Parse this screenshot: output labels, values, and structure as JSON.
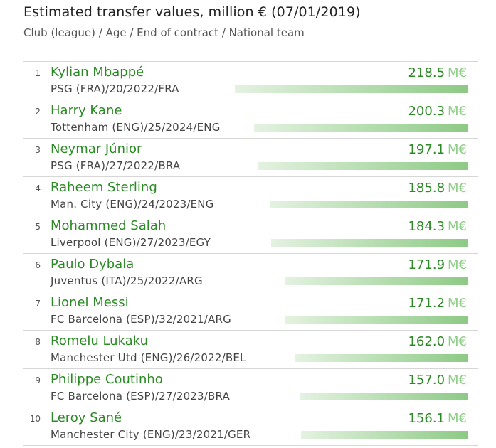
{
  "title": "Estimated transfer values, million € (07/01/2019)",
  "subtitle": "Club (league) / Age / End of contract / National team",
  "unit": "M€",
  "colors": {
    "accent": "#2a8a23",
    "unit": "#8fcf88",
    "bar_start": "#e4f2e1",
    "bar_end": "#8dca85"
  },
  "chart_data": {
    "type": "bar",
    "orientation": "horizontal",
    "title": "Estimated transfer values, million € (07/01/2019)",
    "categories": [
      "Kylian Mbappé",
      "Harry Kane",
      "Neymar Júnior",
      "Raheem Sterling",
      "Mohammed Salah",
      "Paulo Dybala",
      "Lionel Messi",
      "Romelu Lukaku",
      "Philippe Coutinho",
      "Leroy Sané"
    ],
    "values": [
      218.5,
      200.3,
      197.1,
      185.8,
      184.3,
      171.9,
      171.2,
      162.0,
      157.0,
      156.1
    ],
    "value_labels": [
      "218.5",
      "200.3",
      "197.1",
      "185.8",
      "184.3",
      "171.9",
      "171.2",
      "162.0",
      "157.0",
      "156.1"
    ],
    "ranks": [
      "1",
      "2",
      "3",
      "4",
      "5",
      "6",
      "7",
      "8",
      "9",
      "10"
    ],
    "details": [
      "PSG (FRA)/20/2022/FRA",
      "Tottenham (ENG)/25/2024/ENG",
      "PSG (FRA)/27/2022/BRA",
      "Man. City (ENG)/24/2023/ENG",
      "Liverpool (ENG)/27/2023/EGY",
      "Juventus (ITA)/25/2022/ARG",
      "FC Barcelona (ESP)/32/2021/ARG",
      "Manchester Utd (ENG)/26/2022/BEL",
      "FC Barcelona (ESP)/27/2023/BRA",
      "Manchester City (ENG)/23/2021/GER"
    ],
    "grid": false,
    "legend": "none"
  }
}
